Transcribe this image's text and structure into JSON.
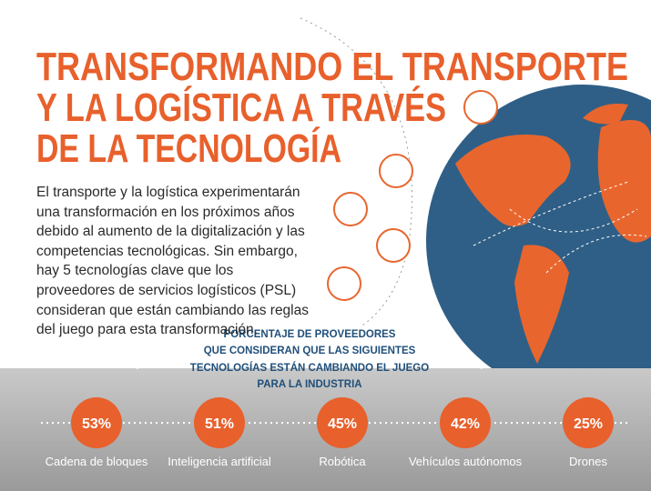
{
  "header": {
    "title_lines": [
      "TRANSFORMANDO EL TRANSPORTE",
      "Y LA LOGÍSTICA A TRAVÉS",
      "DE LA TECNOLOGÍA"
    ]
  },
  "intro": "El transporte y la logística experimentarán una transformación en los próximos años debido al aumento de la digitalización y las competencias tecnológicas. Sin embargo, hay 5 tecnologías clave que los proveedores de servicios logísticos (PSL) consideran que están cambiando las reglas del juego para esta transformación.",
  "subtitle_lines": [
    "PORCENTAJE DE PROVEEDORES",
    "QUE CONSIDERAN QUE LAS SIGUIENTES",
    "TECNOLOGÍAS ESTÁN CAMBIANDO EL JUEGO",
    "PARA LA INDUSTRIA"
  ],
  "items": [
    {
      "value": "53%",
      "label": "Cadena de bloques"
    },
    {
      "value": "51%",
      "label": "Inteligencia artificial"
    },
    {
      "value": "45%",
      "label": "Robótica"
    },
    {
      "value": "42%",
      "label": "Vehículos autónomos"
    },
    {
      "value": "25%",
      "label": "Drones"
    }
  ]
}
